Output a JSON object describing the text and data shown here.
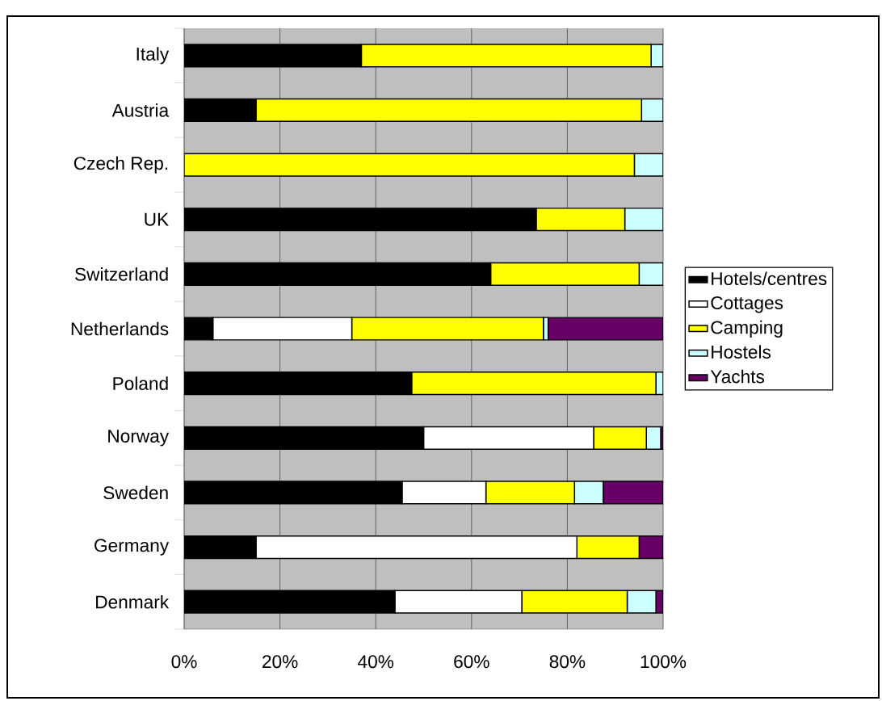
{
  "chart_data": {
    "type": "bar",
    "orientation": "horizontal",
    "stacked": true,
    "categories": [
      "Italy",
      "Austria",
      "Czech Rep.",
      "UK",
      "Switzerland",
      "Netherlands",
      "Poland",
      "Norway",
      "Sweden",
      "Germany",
      "Denmark"
    ],
    "series": [
      {
        "name": "Hotels/centres",
        "color": "#000000",
        "values": [
          37,
          15,
          null,
          73.5,
          64,
          6,
          47.5,
          50,
          45.5,
          15,
          44
        ]
      },
      {
        "name": "Cottages",
        "color": "#ffffff",
        "values": [
          null,
          null,
          null,
          null,
          null,
          29,
          null,
          35.5,
          17.5,
          67,
          26.5
        ]
      },
      {
        "name": "Camping",
        "color": "#ffff00",
        "values": [
          60.5,
          80.5,
          94,
          18.5,
          31,
          40,
          51,
          11,
          18.5,
          13,
          22
        ]
      },
      {
        "name": "Hostels",
        "color": "#ccffff",
        "values": [
          2.5,
          4.5,
          6,
          8,
          5,
          1,
          1.5,
          3,
          6,
          null,
          6
        ]
      },
      {
        "name": "Yachts",
        "color": "#660066",
        "values": [
          null,
          null,
          null,
          null,
          null,
          24,
          null,
          0.5,
          12.5,
          5,
          1.5
        ]
      }
    ],
    "xlim": [
      0,
      100
    ],
    "xticks": [
      {
        "value": 0,
        "label": "0%"
      },
      {
        "value": 20,
        "label": "20%"
      },
      {
        "value": 40,
        "label": "40%"
      },
      {
        "value": 60,
        "label": "60%"
      },
      {
        "value": 80,
        "label": "80%"
      },
      {
        "value": 100,
        "label": "100%"
      }
    ],
    "grid": "x",
    "legend": "right"
  }
}
